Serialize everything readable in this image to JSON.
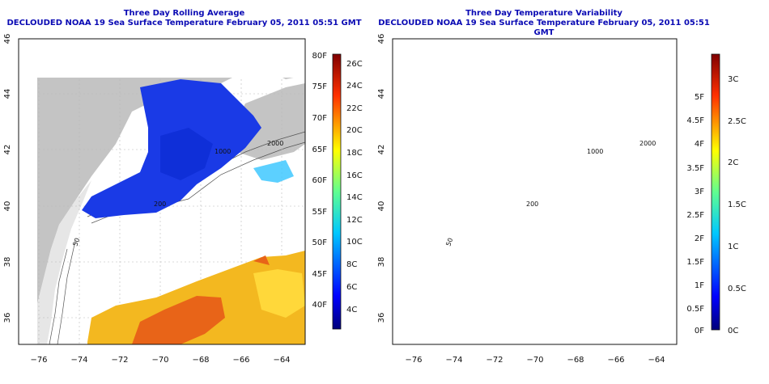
{
  "left_panel": {
    "title": "Three Day Rolling Average",
    "subtitle": "DECLOUDED NOAA 19 Sea Surface Temperature February 05, 2011 05:51 GMT",
    "x_ticks": [
      "−76",
      "−74",
      "−72",
      "−70",
      "−68",
      "−66",
      "−64"
    ],
    "y_ticks": [
      "36",
      "38",
      "40",
      "42",
      "44",
      "46"
    ],
    "colorbar_f": [
      "80F",
      "75F",
      "70F",
      "65F",
      "60F",
      "55F",
      "50F",
      "45F",
      "40F"
    ],
    "colorbar_c": [
      "26C",
      "24C",
      "22C",
      "20C",
      "18C",
      "16C",
      "14C",
      "12C",
      "10C",
      "8C",
      "6C",
      "4C"
    ],
    "contour_labels": [
      "200",
      "1000",
      "2000",
      "50"
    ]
  },
  "right_panel": {
    "title": "Three Day Temperature Variability",
    "subtitle": "DECLOUDED NOAA 19 Sea Surface Temperature February 05, 2011 05:51 GMT",
    "x_ticks": [
      "−76",
      "−74",
      "−72",
      "−70",
      "−68",
      "−66",
      "−64"
    ],
    "y_ticks": [
      "36",
      "38",
      "40",
      "42",
      "44",
      "46"
    ],
    "colorbar_f": [
      "5F",
      "4.5F",
      "4F",
      "3.5F",
      "3F",
      "2.5F",
      "2F",
      "1.5F",
      "1F",
      "0.5F",
      "0F"
    ],
    "colorbar_c": [
      "3C",
      "2.5C",
      "2C",
      "1.5C",
      "1C",
      "0.5C",
      "0C"
    ],
    "contour_labels": [
      "200",
      "1000",
      "2000",
      "50"
    ]
  },
  "colors": {
    "title": "#0b0bb4",
    "land": "#c4c4c4",
    "cold": "#1030e0",
    "warm": "#f0a020",
    "hot": "#d83010"
  }
}
